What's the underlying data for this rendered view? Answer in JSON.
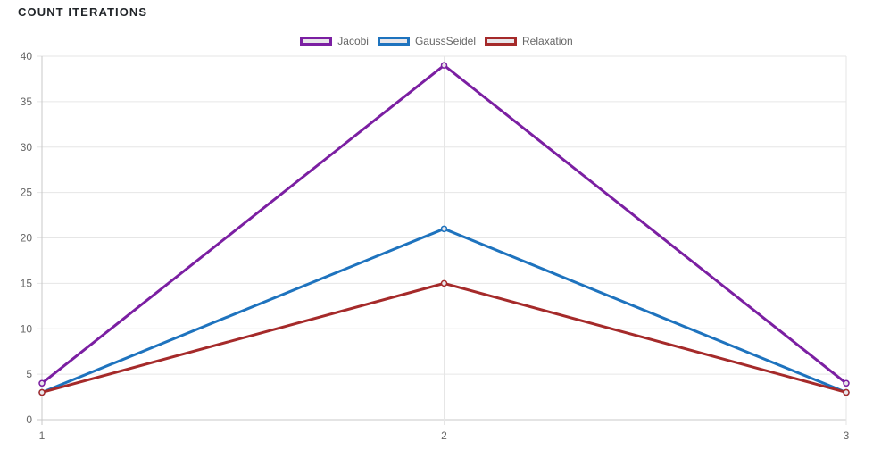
{
  "card": {
    "title": "COUNT ITERATIONS"
  },
  "chart_data": {
    "type": "line",
    "title": "",
    "xlabel": "",
    "ylabel": "",
    "categories": [
      "1",
      "2",
      "3"
    ],
    "ylim": [
      0,
      40
    ],
    "yticks": [
      0,
      5,
      10,
      15,
      20,
      25,
      30,
      35,
      40
    ],
    "grid": true,
    "legend_position": "top-center",
    "series": [
      {
        "name": "Jacobi",
        "color": "#7b1fa2",
        "values": [
          4,
          39,
          4
        ]
      },
      {
        "name": "GaussSeidel",
        "color": "#1e73be",
        "values": [
          3,
          21,
          3
        ]
      },
      {
        "name": "Relaxation",
        "color": "#a52a2a",
        "values": [
          3,
          15,
          3
        ]
      }
    ]
  }
}
